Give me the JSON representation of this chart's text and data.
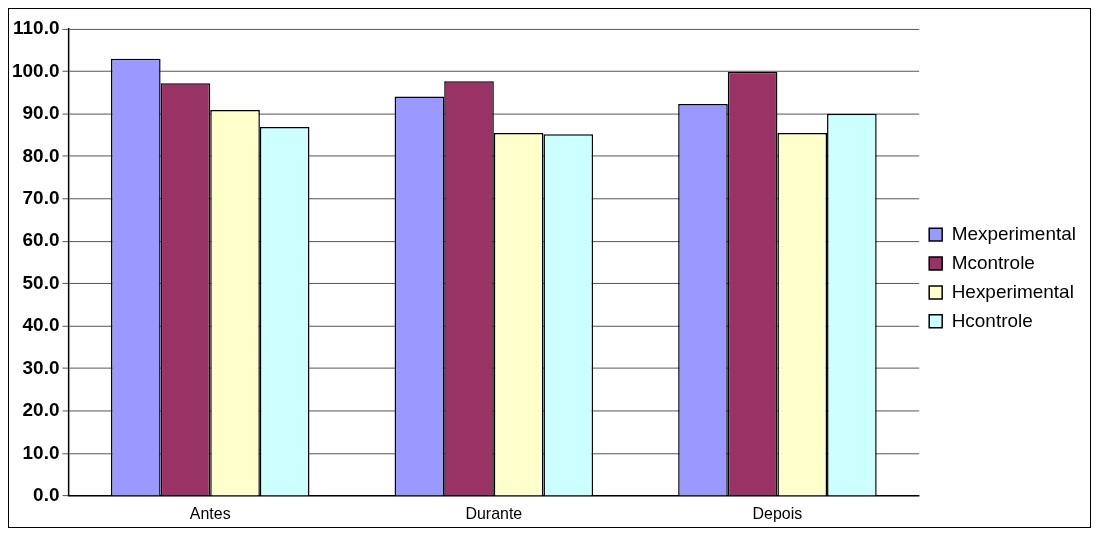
{
  "chart_data": {
    "type": "bar",
    "categories": [
      "Antes",
      "Durante",
      "Depois"
    ],
    "series": [
      {
        "name": "Mexperimental",
        "color": "#9999ff",
        "values": [
          103.0,
          94.1,
          92.3
        ]
      },
      {
        "name": "Mcontrole",
        "color": "#993366",
        "values": [
          97.2,
          97.7,
          99.9
        ]
      },
      {
        "name": "Hexperimental",
        "color": "#ffffcc",
        "values": [
          90.9,
          85.5,
          85.5
        ]
      },
      {
        "name": "Hcontrole",
        "color": "#ccffff",
        "values": [
          86.9,
          85.2,
          90.0
        ]
      }
    ],
    "ylim": [
      0,
      110
    ],
    "yticks": [
      {
        "value": 0,
        "label": "0.0"
      },
      {
        "value": 10,
        "label": "10.0"
      },
      {
        "value": 20,
        "label": "20.0"
      },
      {
        "value": 30,
        "label": "30.0"
      },
      {
        "value": 40,
        "label": "40.0"
      },
      {
        "value": 50,
        "label": "50.0"
      },
      {
        "value": 60,
        "label": "60.0"
      },
      {
        "value": 70,
        "label": "70.0"
      },
      {
        "value": 80,
        "label": "80.0"
      },
      {
        "value": 90,
        "label": "90.0"
      },
      {
        "value": 100,
        "label": "100.0"
      },
      {
        "value": 110,
        "label": "110.0"
      }
    ],
    "grid": "y",
    "legend": "right"
  }
}
